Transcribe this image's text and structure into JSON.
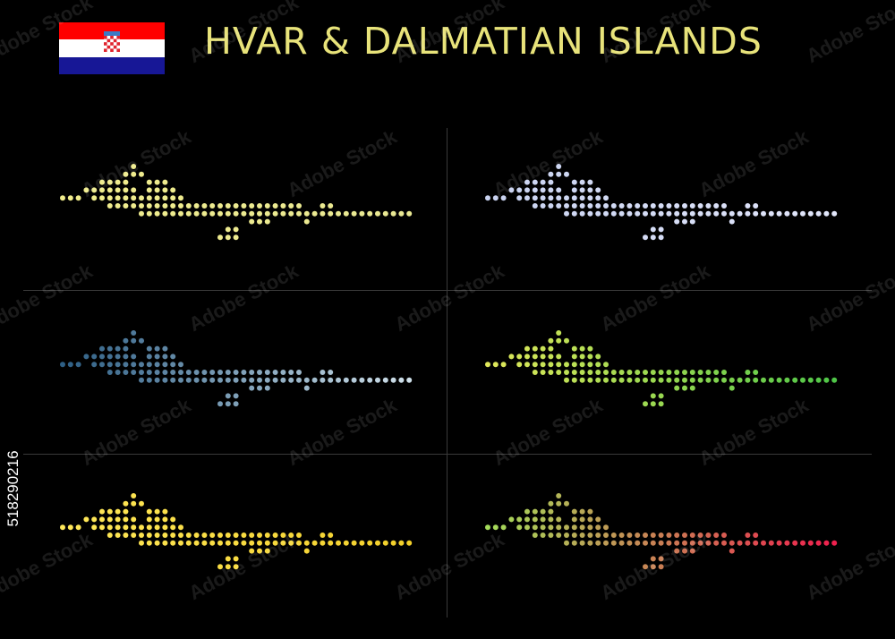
{
  "title": "HVAR & DALMATIAN ISLANDS",
  "flag": {
    "colors": [
      "#ff0000",
      "#ffffff",
      "#171796"
    ],
    "coat_red": "#e0242e",
    "coat_white": "#ffffff",
    "crown_blue": "#3d7ac5"
  },
  "background": "#000000",
  "title_color": "#e8e37a",
  "stock_id": "518290216",
  "watermark": "Adobe Stock",
  "maps": [
    {
      "name": "yellow-pale",
      "from": "#f0ec8c",
      "to": "#e9e893"
    },
    {
      "name": "lavender",
      "from": "#c8d2f0",
      "to": "#e2e6fa"
    },
    {
      "name": "steel-blue",
      "from": "#2e5f85",
      "to": "#cfe0ea"
    },
    {
      "name": "lime-green",
      "from": "#e0e85a",
      "to": "#4fc648"
    },
    {
      "name": "gold",
      "from": "#ffe85a",
      "to": "#f2cf2a"
    },
    {
      "name": "green-to-red",
      "from": "#a4dc5a",
      "to": "#f0204e"
    }
  ]
}
